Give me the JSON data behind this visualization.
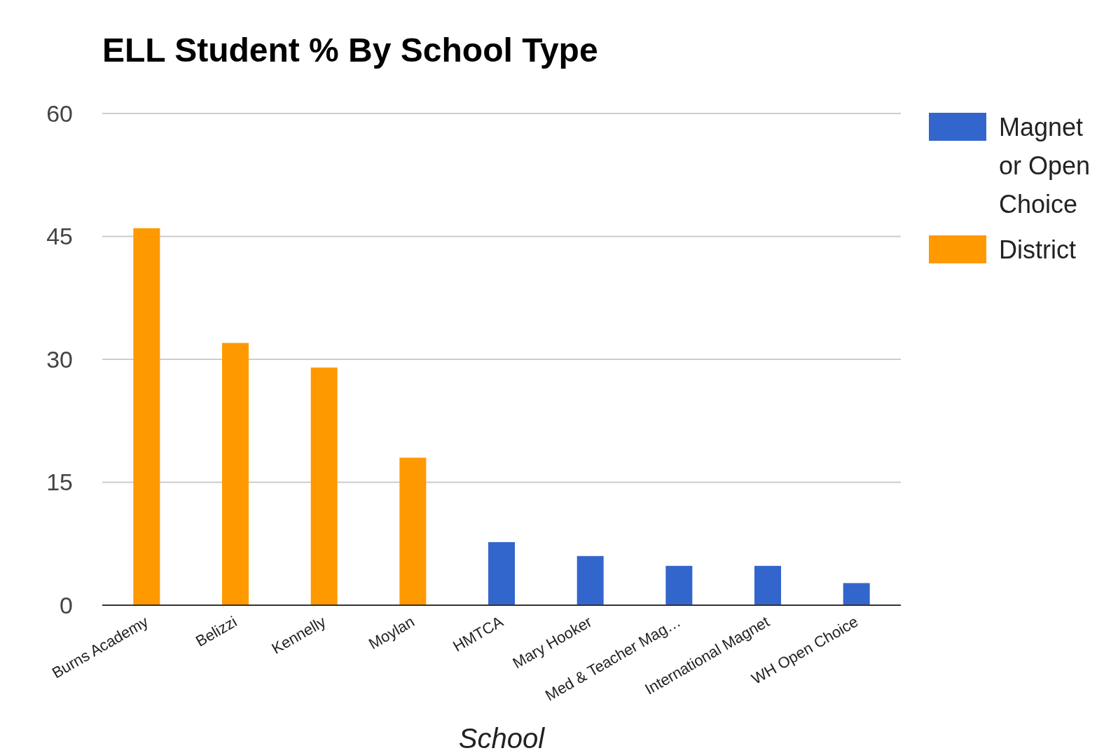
{
  "chart_data": {
    "type": "bar",
    "title": "ELL Student % By School Type",
    "xlabel": "School",
    "categories": [
      "Burns Academy",
      "Belizzi",
      "Kennelly",
      "Moylan",
      "HMTCA",
      "Mary Hooker",
      "Med & Teacher Mag…",
      "International Magnet",
      "WH Open Choice"
    ],
    "series": [
      {
        "name": "Magnet or Open Choice",
        "color": "#3366cc",
        "values": [
          null,
          null,
          null,
          null,
          7.7,
          6,
          4.8,
          4.8,
          2.7
        ]
      },
      {
        "name": "District",
        "color": "#ff9900",
        "values": [
          46,
          32,
          29,
          18,
          null,
          null,
          null,
          null,
          null
        ]
      }
    ],
    "stacked": true,
    "ylim": [
      0,
      60
    ],
    "yticks": [
      0,
      15,
      30,
      45,
      60
    ],
    "grid": "y",
    "legend": "right"
  }
}
